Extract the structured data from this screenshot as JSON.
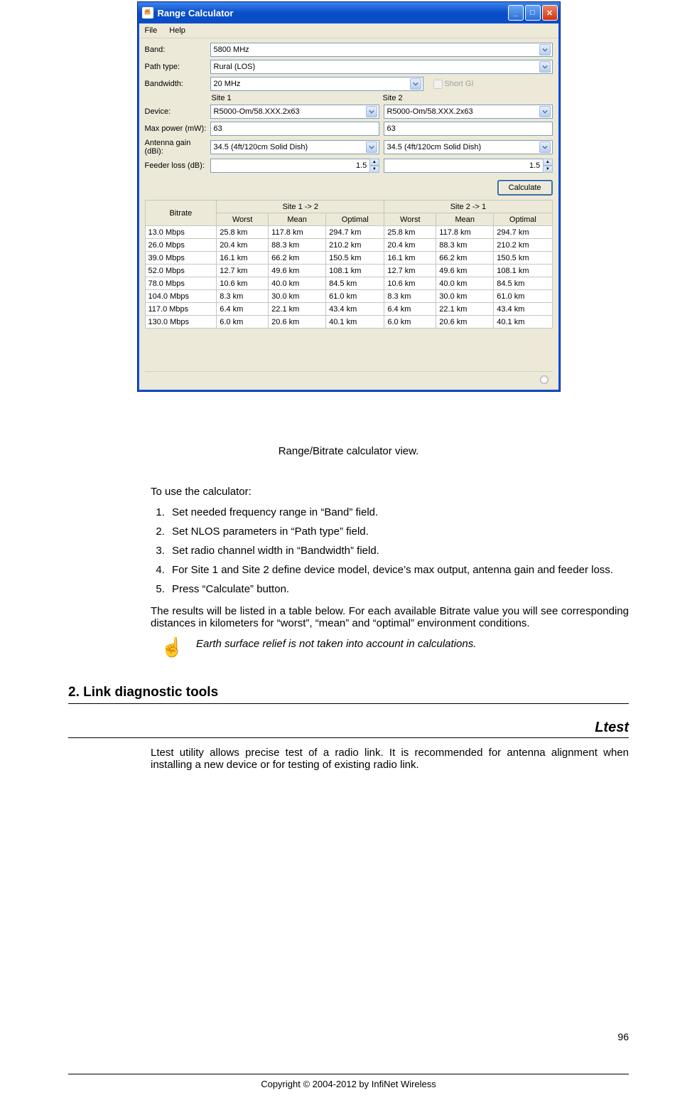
{
  "window": {
    "title": "Range Calculator",
    "menu": {
      "file": "File",
      "help": "Help"
    },
    "labels": {
      "band": "Band:",
      "path": "Path type:",
      "bandwidth": "Bandwidth:",
      "shortgi": "Short GI",
      "site1": "Site 1",
      "site2": "Site 2",
      "device": "Device:",
      "maxpower": "Max power (mW):",
      "antgain": "Antenna gain (dBi):",
      "feeder": "Feeder loss (dB):",
      "calculate": "Calculate"
    },
    "values": {
      "band": "5800 MHz",
      "path": "Rural (LOS)",
      "bandwidth": "20 MHz",
      "device1": "R5000-Om/58.XXX.2x63",
      "device2": "R5000-Om/58.XXX.2x63",
      "maxpower1": "63",
      "maxpower2": "63",
      "antgain1": "34.5 (4ft/120cm Solid Dish)",
      "antgain2": "34.5 (4ft/120cm Solid Dish)",
      "feeder1": "1.5",
      "feeder2": "1.5"
    },
    "table": {
      "headers": {
        "bitrate": "Bitrate",
        "s12": "Site 1 -> 2",
        "s21": "Site 2 -> 1",
        "worst": "Worst",
        "mean": "Mean",
        "optimal": "Optimal"
      },
      "rows": [
        [
          "13.0 Mbps",
          "25.8 km",
          "117.8 km",
          "294.7 km",
          "25.8 km",
          "117.8 km",
          "294.7 km"
        ],
        [
          "26.0 Mbps",
          "20.4 km",
          "88.3 km",
          "210.2 km",
          "20.4 km",
          "88.3 km",
          "210.2 km"
        ],
        [
          "39.0 Mbps",
          "16.1 km",
          "66.2 km",
          "150.5 km",
          "16.1 km",
          "66.2 km",
          "150.5 km"
        ],
        [
          "52.0 Mbps",
          "12.7 km",
          "49.6 km",
          "108.1 km",
          "12.7 km",
          "49.6 km",
          "108.1 km"
        ],
        [
          "78.0 Mbps",
          "10.6 km",
          "40.0 km",
          "84.5 km",
          "10.6 km",
          "40.0 km",
          "84.5 km"
        ],
        [
          "104.0 Mbps",
          "8.3 km",
          "30.0 km",
          "61.0 km",
          "8.3 km",
          "30.0 km",
          "61.0 km"
        ],
        [
          "117.0 Mbps",
          "6.4 km",
          "22.1 km",
          "43.4 km",
          "6.4 km",
          "22.1 km",
          "43.4 km"
        ],
        [
          "130.0 Mbps",
          "6.0 km",
          "20.6 km",
          "40.1 km",
          "6.0 km",
          "20.6 km",
          "40.1 km"
        ]
      ]
    },
    "colors": {
      "titlebar_top": "#3b84f1",
      "titlebar_bottom": "#0a4ec7",
      "body_bg": "#ece9d8",
      "border": "#7f9db9",
      "close_btn": "#d1350f"
    }
  },
  "doc": {
    "caption": "Range/Bitrate calculator view.",
    "intro": "To use the calculator:",
    "steps": [
      "Set needed frequency range in “Band” field.",
      "Set NLOS parameters in “Path type” field.",
      "Set radio channel width in “Bandwidth” field.",
      "For Site 1 and Site 2 define device model, device’s max output, antenna gain and feeder loss.",
      "Press “Calculate” button."
    ],
    "results_para": "The results will be listed in a table below. For each available Bitrate value you will see corresponding distances in kilometers for “worst”, “mean” and “optimal” environment conditions.",
    "note": "Earth surface relief is not taken into account in calculations.",
    "section2": "2. Link diagnostic tools",
    "subhead": "Ltest",
    "ltest_para": "Ltest utility allows precise test of a radio link. It is recommended for antenna alignment when installing a new device or for testing of existing radio link.",
    "pagenum": "96",
    "copyright": "Copyright © 2004-2012 by InfiNet Wireless"
  }
}
